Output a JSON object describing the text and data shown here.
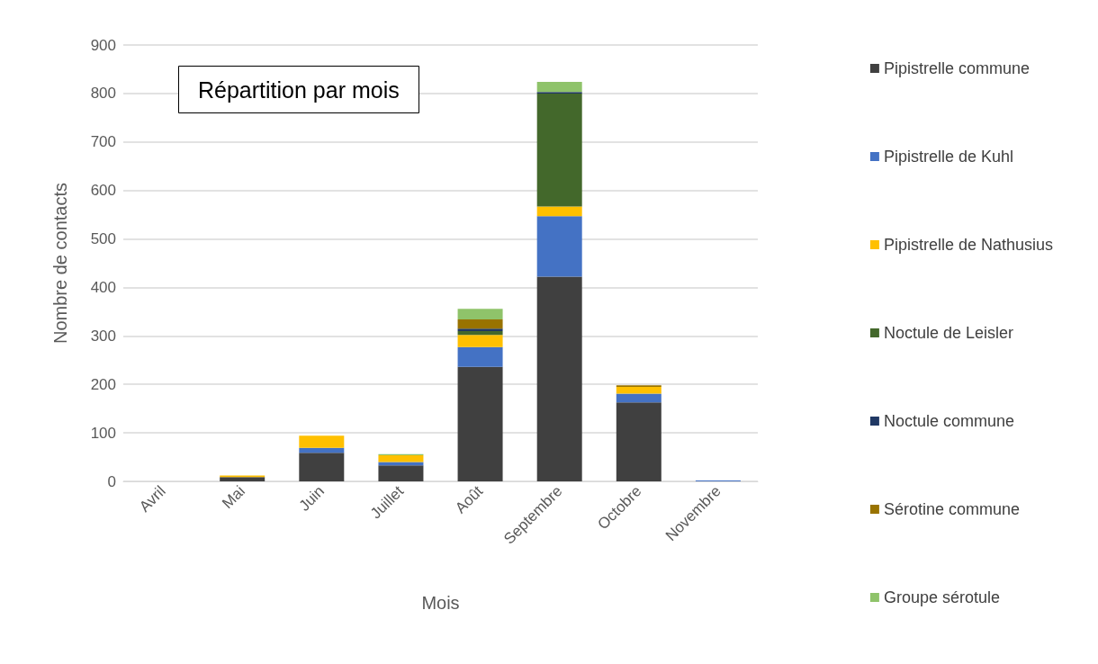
{
  "chart_data": {
    "type": "bar",
    "title": "Répartition par mois",
    "xlabel": "Mois",
    "ylabel": "Nombre de contacts",
    "categories": [
      "Avril",
      "Mai",
      "Juin",
      "Juillet",
      "Août",
      "Septembre",
      "Octobre",
      "Novembre"
    ],
    "stacked": true,
    "ylim": [
      0,
      900
    ],
    "yticks": [
      0,
      100,
      200,
      300,
      400,
      500,
      600,
      700,
      800,
      900
    ],
    "grid": "y",
    "legend": "right",
    "series": [
      {
        "name": "Pipistrelle commune",
        "color": "#404040",
        "values": [
          0,
          9,
          59,
          33,
          236,
          422,
          163,
          0
        ]
      },
      {
        "name": "Pipistrelle de Kuhl",
        "color": "#4472c4",
        "values": [
          0,
          0,
          10,
          7,
          41,
          125,
          18,
          2
        ]
      },
      {
        "name": "Pipistrelle de Nathusius",
        "color": "#ffc000",
        "values": [
          0,
          3,
          25,
          14,
          25,
          20,
          14,
          0
        ]
      },
      {
        "name": "Noctule de Leisler",
        "color": "#43682b",
        "values": [
          0,
          0,
          0,
          0,
          8,
          233,
          0,
          0
        ]
      },
      {
        "name": "Noctule commune",
        "color": "#203864",
        "values": [
          0,
          0,
          0,
          0,
          5,
          3,
          0,
          0
        ]
      },
      {
        "name": "Sérotine commune",
        "color": "#997300",
        "values": [
          0,
          0,
          0,
          0,
          19,
          null,
          3,
          0
        ]
      },
      {
        "name": "Groupe sérotule",
        "color": "#8fc36a",
        "values": [
          0,
          0,
          0,
          2,
          22,
          21,
          null,
          0
        ]
      }
    ]
  }
}
